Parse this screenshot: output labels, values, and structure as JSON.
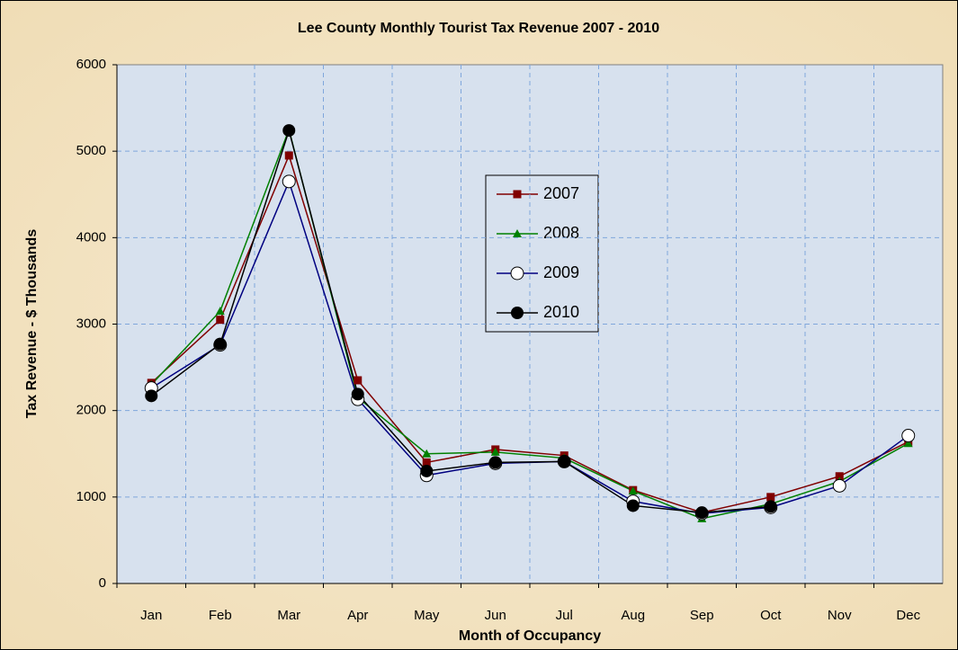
{
  "chart_data": {
    "type": "line",
    "title": "Lee County Monthly Tourist Tax Revenue 2007 - 2010",
    "x_label": "Month of Occupancy",
    "y_label": "Tax Revenue - $ Thousands",
    "categories": [
      "Jan",
      "Feb",
      "Mar",
      "Apr",
      "May",
      "Jun",
      "Jul",
      "Aug",
      "Sep",
      "Oct",
      "Nov",
      "Dec"
    ],
    "series": [
      {
        "name": "2007",
        "color": "#800000",
        "marker": "square",
        "values": [
          2320,
          3050,
          4950,
          2350,
          1400,
          1550,
          1480,
          1080,
          820,
          1000,
          1240,
          1640
        ]
      },
      {
        "name": "2008",
        "color": "#008000",
        "marker": "triangle",
        "values": [
          2300,
          3150,
          5250,
          2150,
          1500,
          1520,
          1450,
          1070,
          750,
          920,
          1180,
          1620
        ]
      },
      {
        "name": "2009",
        "color": "#000080",
        "marker": "open-circle",
        "values": [
          2260,
          2760,
          4650,
          2130,
          1250,
          1390,
          1410,
          950,
          810,
          880,
          1130,
          1710
        ]
      },
      {
        "name": "2010",
        "color": "#000000",
        "marker": "filled-circle",
        "values": [
          2170,
          2770,
          5240,
          2190,
          1300,
          1400,
          1410,
          900,
          820,
          890,
          null,
          null
        ]
      }
    ],
    "ylim": [
      0,
      6000
    ],
    "yticks": [
      0,
      1000,
      2000,
      3000,
      4000,
      5000,
      6000
    ],
    "grid": true
  }
}
